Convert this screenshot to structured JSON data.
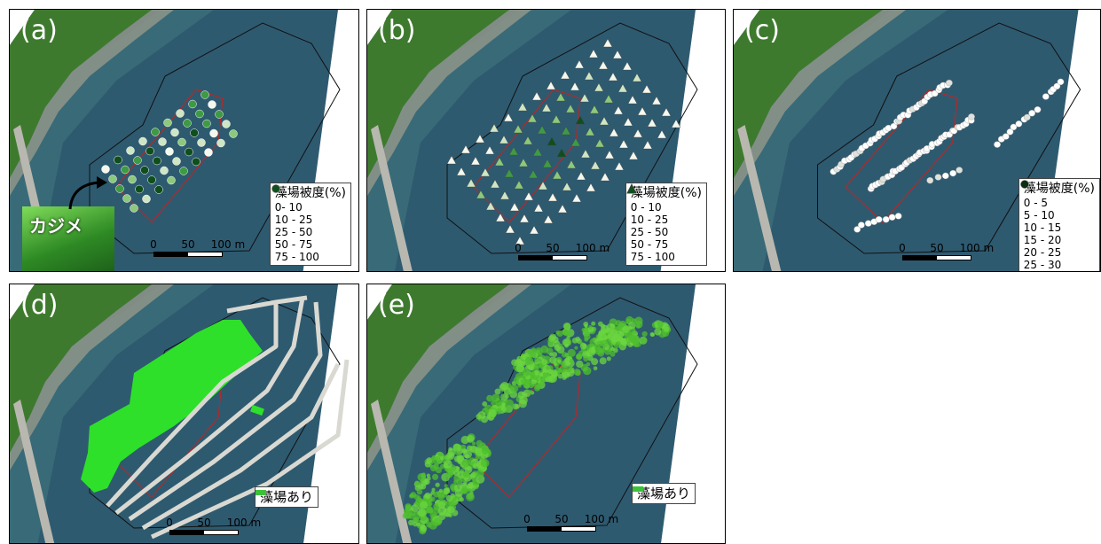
{
  "panels": [
    {
      "label": "(a)",
      "inset_label": "カジメ",
      "legend": {
        "title": "藻場被度(%)",
        "items": [
          "0- 10",
          "10 - 25",
          "25 - 50",
          "50 - 75",
          "75 - 100"
        ]
      },
      "scale_labels": [
        "0",
        "50",
        "100 m"
      ]
    },
    {
      "label": "(b)",
      "legend": {
        "title": "藻場被度(%)",
        "items": [
          "0 - 10",
          "10 - 25",
          "25 - 50",
          "50 - 75",
          "75 - 100"
        ]
      },
      "scale_labels": [
        "0",
        "50",
        "100 m"
      ]
    },
    {
      "label": "(c)",
      "legend": {
        "title": "藻場被度(%)",
        "items": [
          "0 - 5",
          "5 - 10",
          "10 - 15",
          "15 - 20",
          "20 - 25",
          "25 - 30"
        ]
      },
      "scale_labels": [
        "0",
        "50",
        "100 m"
      ]
    },
    {
      "label": "(d)",
      "legend": {
        "items": [
          "藻場あり"
        ]
      },
      "scale_labels": [
        "0",
        "50",
        "100 m"
      ]
    },
    {
      "label": "(e)",
      "legend": {
        "items": [
          "藻場あり"
        ]
      },
      "scale_labels": [
        "0",
        "50",
        "100 m"
      ]
    }
  ]
}
